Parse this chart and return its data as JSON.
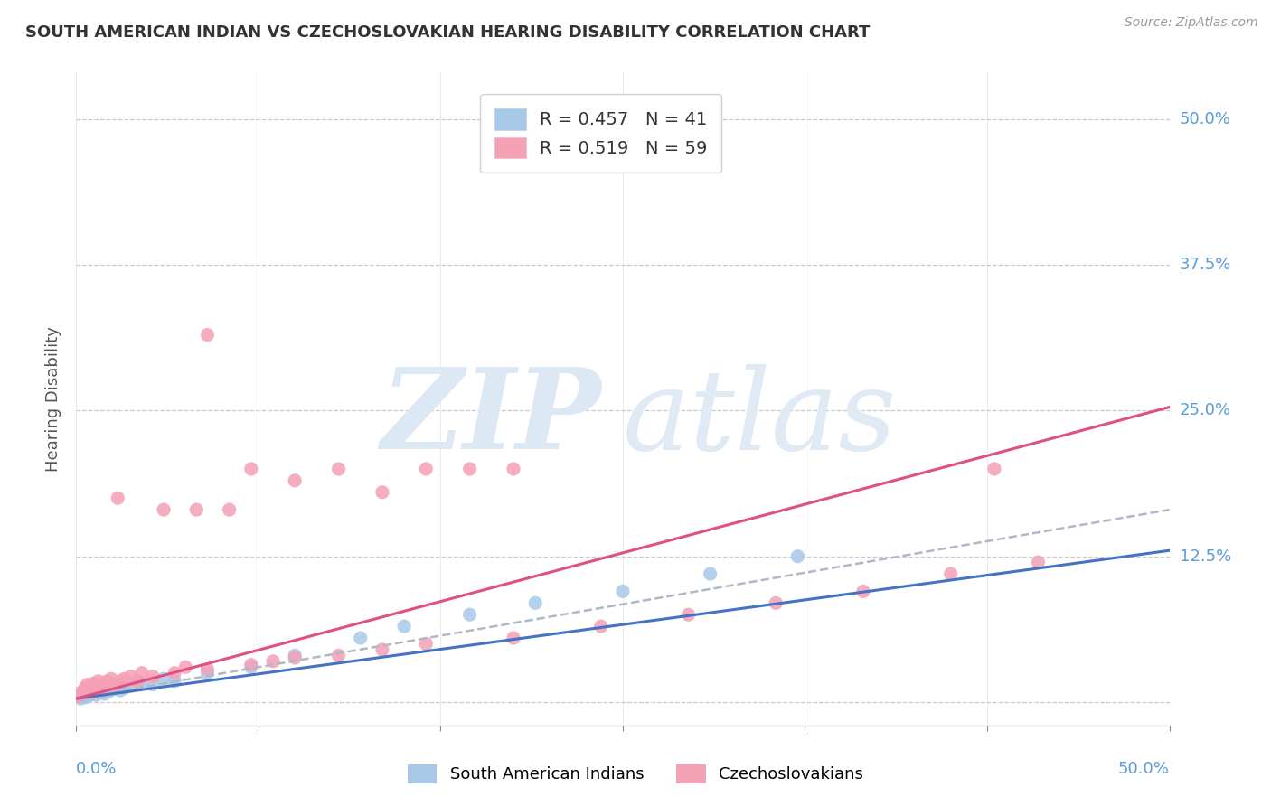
{
  "title": "SOUTH AMERICAN INDIAN VS CZECHOSLOVAKIAN HEARING DISABILITY CORRELATION CHART",
  "source": "Source: ZipAtlas.com",
  "ylabel": "Hearing Disability",
  "r_blue": 0.457,
  "n_blue": 41,
  "r_pink": 0.519,
  "n_pink": 59,
  "yticks": [
    0.0,
    0.125,
    0.25,
    0.375,
    0.5
  ],
  "ytick_labels": [
    "",
    "12.5%",
    "25.0%",
    "37.5%",
    "50.0%"
  ],
  "xlim": [
    0.0,
    0.5
  ],
  "ylim": [
    -0.02,
    0.54
  ],
  "color_blue": "#a8c8e8",
  "color_pink": "#f4a0b5",
  "color_blue_line": "#4472c4",
  "color_pink_line": "#e05080",
  "color_dashed": "#b0b8c8",
  "background_color": "#ffffff",
  "watermark_zip": "ZIP",
  "watermark_atlas": "atlas",
  "watermark_color": "#dde8f5",
  "legend_label_blue": "R = 0.457   N = 41",
  "legend_label_pink": "R = 0.519   N = 59",
  "blue_x": [
    0.001,
    0.002,
    0.003,
    0.003,
    0.004,
    0.004,
    0.005,
    0.005,
    0.006,
    0.006,
    0.007,
    0.007,
    0.008,
    0.008,
    0.009,
    0.01,
    0.01,
    0.011,
    0.012,
    0.013,
    0.014,
    0.015,
    0.016,
    0.018,
    0.02,
    0.022,
    0.025,
    0.03,
    0.035,
    0.04,
    0.045,
    0.06,
    0.08,
    0.1,
    0.13,
    0.15,
    0.18,
    0.21,
    0.25,
    0.29,
    0.33
  ],
  "blue_y": [
    0.005,
    0.003,
    0.006,
    0.008,
    0.004,
    0.01,
    0.005,
    0.008,
    0.006,
    0.009,
    0.007,
    0.01,
    0.008,
    0.012,
    0.006,
    0.009,
    0.013,
    0.008,
    0.01,
    0.007,
    0.012,
    0.009,
    0.011,
    0.013,
    0.01,
    0.012,
    0.014,
    0.016,
    0.015,
    0.02,
    0.018,
    0.025,
    0.03,
    0.04,
    0.055,
    0.065,
    0.075,
    0.085,
    0.095,
    0.11,
    0.125
  ],
  "pink_x": [
    0.001,
    0.002,
    0.003,
    0.004,
    0.004,
    0.005,
    0.005,
    0.006,
    0.006,
    0.007,
    0.007,
    0.008,
    0.008,
    0.009,
    0.01,
    0.01,
    0.011,
    0.012,
    0.013,
    0.014,
    0.015,
    0.016,
    0.017,
    0.018,
    0.019,
    0.02,
    0.022,
    0.025,
    0.028,
    0.03,
    0.035,
    0.04,
    0.045,
    0.05,
    0.055,
    0.06,
    0.07,
    0.08,
    0.09,
    0.1,
    0.12,
    0.14,
    0.16,
    0.2,
    0.24,
    0.28,
    0.32,
    0.36,
    0.4,
    0.44,
    0.06,
    0.08,
    0.1,
    0.12,
    0.14,
    0.16,
    0.18,
    0.2,
    0.42
  ],
  "pink_y": [
    0.005,
    0.008,
    0.006,
    0.01,
    0.012,
    0.008,
    0.015,
    0.009,
    0.012,
    0.01,
    0.014,
    0.008,
    0.016,
    0.01,
    0.012,
    0.018,
    0.012,
    0.015,
    0.01,
    0.018,
    0.015,
    0.02,
    0.016,
    0.015,
    0.175,
    0.018,
    0.02,
    0.022,
    0.018,
    0.025,
    0.022,
    0.165,
    0.025,
    0.03,
    0.165,
    0.028,
    0.165,
    0.032,
    0.035,
    0.038,
    0.04,
    0.045,
    0.05,
    0.055,
    0.065,
    0.075,
    0.085,
    0.095,
    0.11,
    0.12,
    0.315,
    0.2,
    0.19,
    0.2,
    0.18,
    0.2,
    0.2,
    0.2,
    0.2
  ],
  "blue_trend_x": [
    0.0,
    0.5
  ],
  "blue_trend_y": [
    0.003,
    0.13
  ],
  "pink_trend_x": [
    0.0,
    0.5
  ],
  "pink_trend_y": [
    0.003,
    0.253
  ],
  "dashed_trend_x": [
    0.0,
    0.5
  ],
  "dashed_trend_y": [
    0.003,
    0.165
  ]
}
